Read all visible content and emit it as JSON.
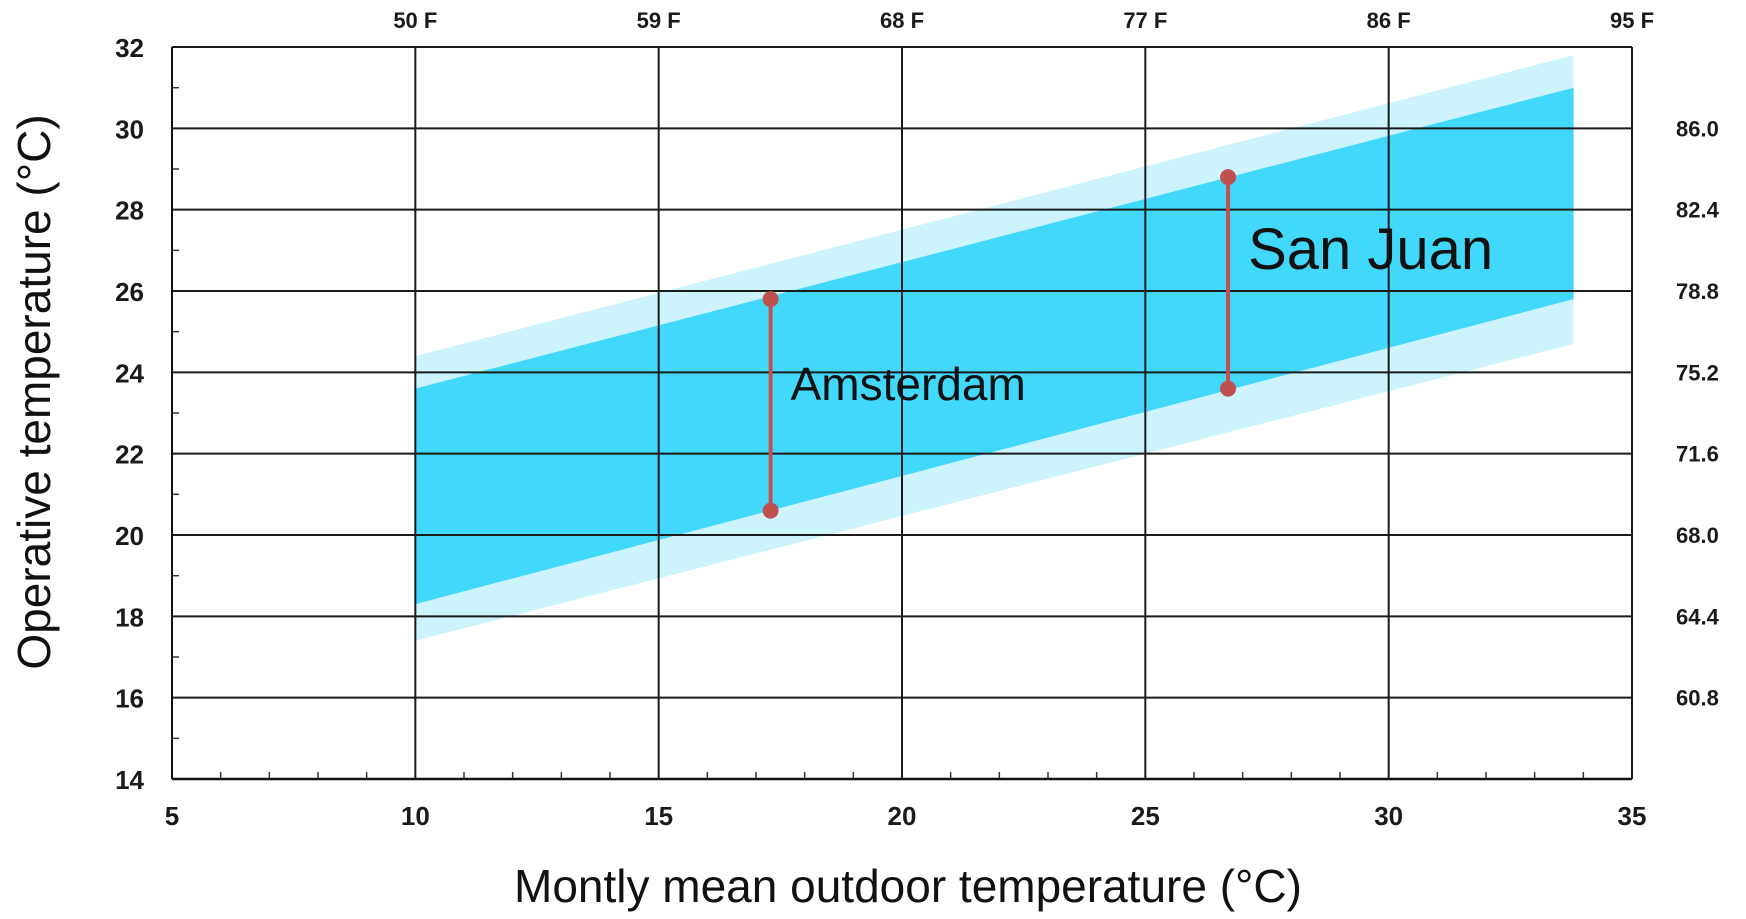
{
  "chart_data": {
    "type": "area",
    "xlabel": "Montly mean outdoor temperature (°C)",
    "ylabel": "Operative temperature (°C)",
    "xlim": [
      5,
      35
    ],
    "ylim": [
      14,
      32
    ],
    "x_ticks": [
      5,
      10,
      15,
      20,
      25,
      30,
      35
    ],
    "y_ticks": [
      14,
      16,
      18,
      20,
      22,
      24,
      26,
      28,
      30,
      32
    ],
    "top_axis_ticks": [
      {
        "x": 10,
        "label": "50 F"
      },
      {
        "x": 15,
        "label": "59 F"
      },
      {
        "x": 20,
        "label": "68 F"
      },
      {
        "x": 25,
        "label": "77 F"
      },
      {
        "x": 30,
        "label": "86 F"
      },
      {
        "x": 35,
        "label": "95 F"
      }
    ],
    "right_axis_ticks": [
      {
        "y": 30,
        "label": "86.0"
      },
      {
        "y": 28,
        "label": "82.4"
      },
      {
        "y": 26,
        "label": "78.8"
      },
      {
        "y": 24,
        "label": "75.2"
      },
      {
        "y": 22,
        "label": "71.6"
      },
      {
        "y": 20,
        "label": "68.0"
      },
      {
        "y": 18,
        "label": "64.4"
      },
      {
        "y": 16,
        "label": "60.8"
      }
    ],
    "grid": true,
    "bands": [
      {
        "name": "",
        "color": "#cdf3fd",
        "lower": [
          [
            10,
            17.4
          ],
          [
            33.8,
            24.7
          ]
        ],
        "upper": [
          [
            10,
            24.4
          ],
          [
            33.8,
            31.8
          ]
        ]
      },
      {
        "name": "",
        "color": "#41d8fc",
        "lower": [
          [
            10,
            18.3
          ],
          [
            33.8,
            25.8
          ]
        ],
        "upper": [
          [
            10,
            23.6
          ],
          [
            33.8,
            31.0
          ]
        ]
      }
    ],
    "ranges": [
      {
        "label": "Amsterdam",
        "x": 17.3,
        "y_low": 20.6,
        "y_high": 25.8
      },
      {
        "label": "San Juan",
        "x": 26.7,
        "y_low": 23.6,
        "y_high": 28.8
      }
    ],
    "range_color": "#c0504d"
  }
}
